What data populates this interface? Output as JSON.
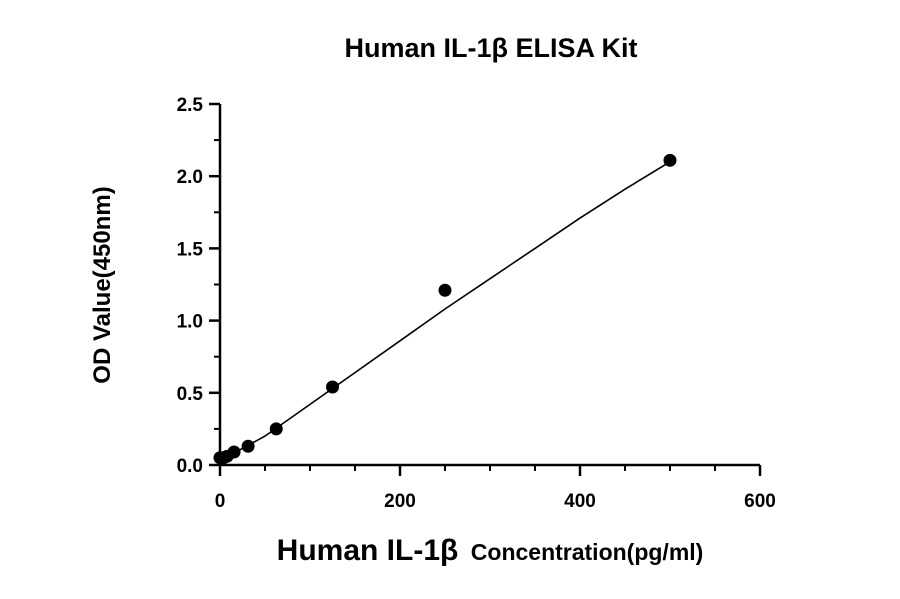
{
  "chart_data": {
    "type": "scatter",
    "title": "Human IL-1β ELISA Kit",
    "xlabel_main": "Human IL-1β",
    "xlabel_sub": "Concentration(pg/ml)",
    "ylabel": "OD Value(450nm)",
    "xlim": [
      0,
      600
    ],
    "ylim": [
      0,
      2.5
    ],
    "x_ticks": [
      0,
      200,
      400,
      600
    ],
    "x_tick_labels": [
      "0",
      "200",
      "400",
      "600"
    ],
    "y_ticks": [
      0,
      0.5,
      1.0,
      1.5,
      2.0,
      2.5
    ],
    "y_tick_labels": [
      "0.0",
      "0.5",
      "1.0",
      "1.5",
      "2.0",
      "2.5"
    ],
    "grid": false,
    "series": [
      {
        "x": [
          0,
          3.9,
          7.8,
          15.6,
          31.25,
          62.5,
          125,
          250,
          500
        ],
        "y": [
          0.05,
          0.05,
          0.06,
          0.09,
          0.13,
          0.25,
          0.54,
          1.21,
          2.11
        ],
        "color": "#000000"
      }
    ],
    "fit_curve": {
      "x": [
        0,
        50,
        100,
        150,
        200,
        250,
        300,
        350,
        400,
        450,
        500
      ],
      "y": [
        0.03,
        0.2,
        0.42,
        0.64,
        0.86,
        1.08,
        1.29,
        1.5,
        1.71,
        1.91,
        2.1
      ]
    }
  }
}
